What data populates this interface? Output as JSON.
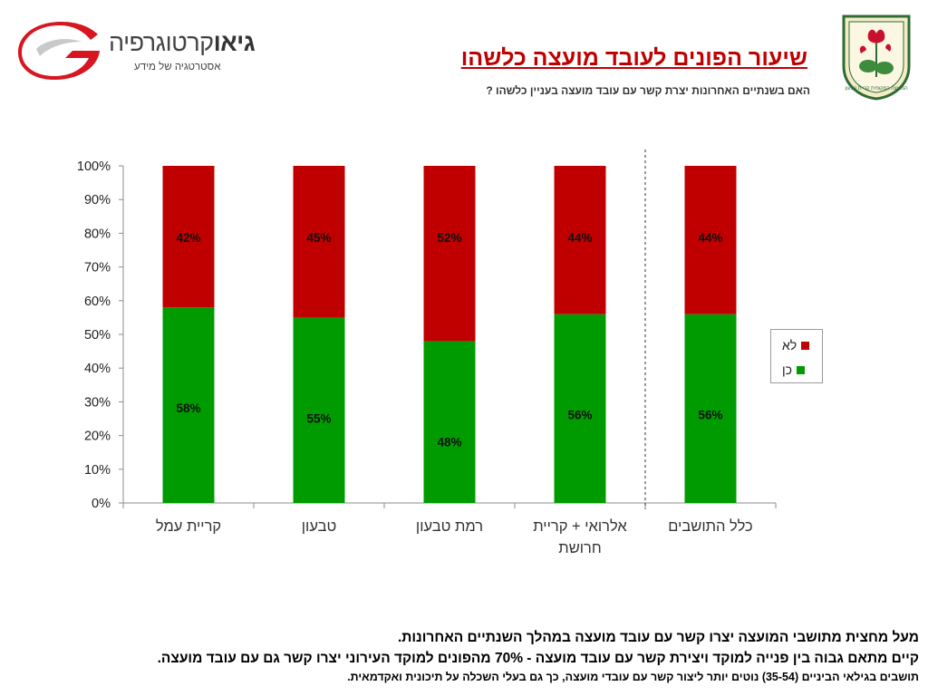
{
  "header": {
    "title": "שיעור הפונים לעובד מועצה כלשהו",
    "subtitle": "האם בשנתיים האחרונות יצרת קשר עם עובד מועצה בעניין כלשהו ?"
  },
  "logo": {
    "brand_bold": "גיאו",
    "brand_light": "קרטוגרפיה",
    "tagline": "אסטרטגיה של מידע"
  },
  "emblem": {
    "text": "המועצה המקומית קריית טבעון"
  },
  "colors": {
    "no": "#c00000",
    "yes": "#009b00",
    "title": "#c00000"
  },
  "legend": {
    "items": [
      {
        "label": "לא",
        "color": "#c00000"
      },
      {
        "label": "כן",
        "color": "#009b00"
      }
    ]
  },
  "chart_data": {
    "type": "bar",
    "stacked": true,
    "title": "",
    "xlabel": "",
    "ylabel": "",
    "ylim": [
      0,
      100
    ],
    "y_ticks": [
      "0%",
      "10%",
      "20%",
      "30%",
      "40%",
      "50%",
      "60%",
      "70%",
      "80%",
      "90%",
      "100%"
    ],
    "categories": [
      "קריית עמל",
      "טבעון",
      "רמת טבעון",
      "אלרואי + קריית חרושת",
      "כלל התושבים"
    ],
    "category_lines": [
      [
        "קריית עמל"
      ],
      [
        "טבעון"
      ],
      [
        "רמת טבעון"
      ],
      [
        "אלרואי + קריית",
        "חרושת"
      ],
      [
        "כלל התושבים"
      ]
    ],
    "series": [
      {
        "name": "כן",
        "color": "#009b00",
        "values": [
          58,
          55,
          48,
          56,
          56
        ],
        "labels": [
          "58%",
          "55%",
          "48%",
          "56%",
          "56%"
        ]
      },
      {
        "name": "לא",
        "color": "#c00000",
        "values": [
          42,
          45,
          52,
          44,
          44
        ],
        "labels": [
          "42%",
          "45%",
          "52%",
          "44%",
          "44%"
        ]
      }
    ],
    "separator_before_category": 4,
    "legend_position": "right",
    "grid": false
  },
  "notes": [
    "מעל מחצית מתושבי המועצה יצרו קשר עם עובד מועצה במהלך השנתיים האחרונות.",
    "קיים מתאם גבוה בין פנייה למוקד ויצירת קשר עם עובד מועצה - 70% מהפונים למוקד העירוני יצרו קשר גם עם עובד מועצה.",
    "תושבים בגילאי הביניים (35-54) נוטים יותר ליצור קשר עם עובדי מועצה, כך גם בעלי השכלה על תיכונית ואקדמאית."
  ]
}
